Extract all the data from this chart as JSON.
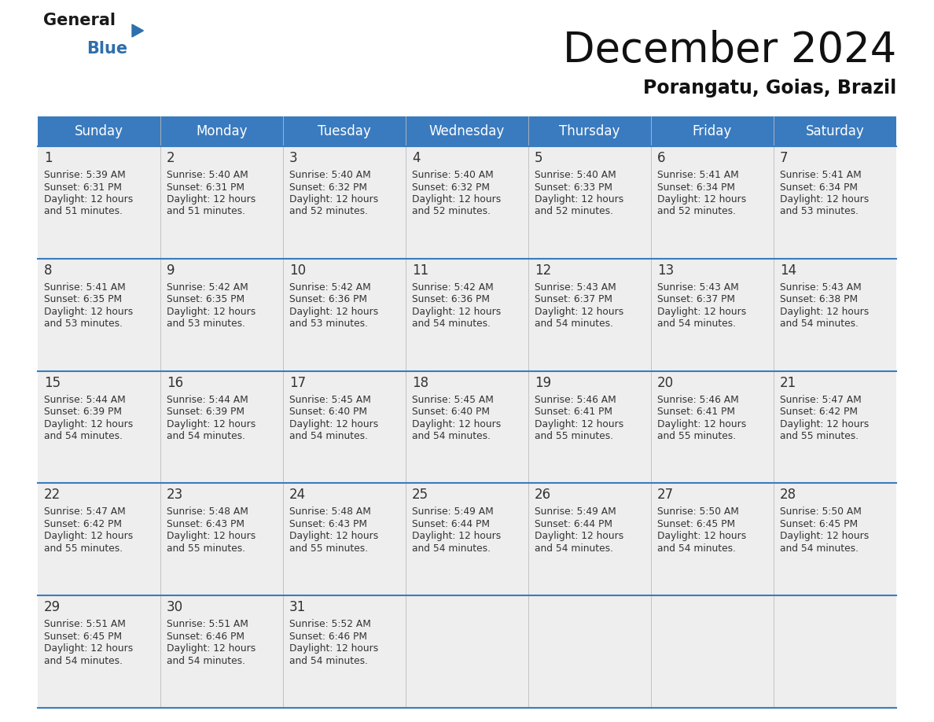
{
  "title": "December 2024",
  "subtitle": "Porangatu, Goias, Brazil",
  "header_bg": "#3a7bbf",
  "header_text": "#ffffff",
  "day_names": [
    "Sunday",
    "Monday",
    "Tuesday",
    "Wednesday",
    "Thursday",
    "Friday",
    "Saturday"
  ],
  "cell_bg": "#eeeeee",
  "border_color": "#3a7bbf",
  "date_color": "#333333",
  "info_color": "#333333",
  "logo_general_color": "#1a1a1a",
  "logo_blue_color": "#2e6fad",
  "days": [
    {
      "date": 1,
      "sunrise": "5:39 AM",
      "sunset": "6:31 PM",
      "daylight_h": "12 hours",
      "daylight_m": "51 minutes"
    },
    {
      "date": 2,
      "sunrise": "5:40 AM",
      "sunset": "6:31 PM",
      "daylight_h": "12 hours",
      "daylight_m": "51 minutes"
    },
    {
      "date": 3,
      "sunrise": "5:40 AM",
      "sunset": "6:32 PM",
      "daylight_h": "12 hours",
      "daylight_m": "52 minutes"
    },
    {
      "date": 4,
      "sunrise": "5:40 AM",
      "sunset": "6:32 PM",
      "daylight_h": "12 hours",
      "daylight_m": "52 minutes"
    },
    {
      "date": 5,
      "sunrise": "5:40 AM",
      "sunset": "6:33 PM",
      "daylight_h": "12 hours",
      "daylight_m": "52 minutes"
    },
    {
      "date": 6,
      "sunrise": "5:41 AM",
      "sunset": "6:34 PM",
      "daylight_h": "12 hours",
      "daylight_m": "52 minutes"
    },
    {
      "date": 7,
      "sunrise": "5:41 AM",
      "sunset": "6:34 PM",
      "daylight_h": "12 hours",
      "daylight_m": "53 minutes"
    },
    {
      "date": 8,
      "sunrise": "5:41 AM",
      "sunset": "6:35 PM",
      "daylight_h": "12 hours",
      "daylight_m": "53 minutes"
    },
    {
      "date": 9,
      "sunrise": "5:42 AM",
      "sunset": "6:35 PM",
      "daylight_h": "12 hours",
      "daylight_m": "53 minutes"
    },
    {
      "date": 10,
      "sunrise": "5:42 AM",
      "sunset": "6:36 PM",
      "daylight_h": "12 hours",
      "daylight_m": "53 minutes"
    },
    {
      "date": 11,
      "sunrise": "5:42 AM",
      "sunset": "6:36 PM",
      "daylight_h": "12 hours",
      "daylight_m": "54 minutes"
    },
    {
      "date": 12,
      "sunrise": "5:43 AM",
      "sunset": "6:37 PM",
      "daylight_h": "12 hours",
      "daylight_m": "54 minutes"
    },
    {
      "date": 13,
      "sunrise": "5:43 AM",
      "sunset": "6:37 PM",
      "daylight_h": "12 hours",
      "daylight_m": "54 minutes"
    },
    {
      "date": 14,
      "sunrise": "5:43 AM",
      "sunset": "6:38 PM",
      "daylight_h": "12 hours",
      "daylight_m": "54 minutes"
    },
    {
      "date": 15,
      "sunrise": "5:44 AM",
      "sunset": "6:39 PM",
      "daylight_h": "12 hours",
      "daylight_m": "54 minutes"
    },
    {
      "date": 16,
      "sunrise": "5:44 AM",
      "sunset": "6:39 PM",
      "daylight_h": "12 hours",
      "daylight_m": "54 minutes"
    },
    {
      "date": 17,
      "sunrise": "5:45 AM",
      "sunset": "6:40 PM",
      "daylight_h": "12 hours",
      "daylight_m": "54 minutes"
    },
    {
      "date": 18,
      "sunrise": "5:45 AM",
      "sunset": "6:40 PM",
      "daylight_h": "12 hours",
      "daylight_m": "54 minutes"
    },
    {
      "date": 19,
      "sunrise": "5:46 AM",
      "sunset": "6:41 PM",
      "daylight_h": "12 hours",
      "daylight_m": "55 minutes"
    },
    {
      "date": 20,
      "sunrise": "5:46 AM",
      "sunset": "6:41 PM",
      "daylight_h": "12 hours",
      "daylight_m": "55 minutes"
    },
    {
      "date": 21,
      "sunrise": "5:47 AM",
      "sunset": "6:42 PM",
      "daylight_h": "12 hours",
      "daylight_m": "55 minutes"
    },
    {
      "date": 22,
      "sunrise": "5:47 AM",
      "sunset": "6:42 PM",
      "daylight_h": "12 hours",
      "daylight_m": "55 minutes"
    },
    {
      "date": 23,
      "sunrise": "5:48 AM",
      "sunset": "6:43 PM",
      "daylight_h": "12 hours",
      "daylight_m": "55 minutes"
    },
    {
      "date": 24,
      "sunrise": "5:48 AM",
      "sunset": "6:43 PM",
      "daylight_h": "12 hours",
      "daylight_m": "55 minutes"
    },
    {
      "date": 25,
      "sunrise": "5:49 AM",
      "sunset": "6:44 PM",
      "daylight_h": "12 hours",
      "daylight_m": "54 minutes"
    },
    {
      "date": 26,
      "sunrise": "5:49 AM",
      "sunset": "6:44 PM",
      "daylight_h": "12 hours",
      "daylight_m": "54 minutes"
    },
    {
      "date": 27,
      "sunrise": "5:50 AM",
      "sunset": "6:45 PM",
      "daylight_h": "12 hours",
      "daylight_m": "54 minutes"
    },
    {
      "date": 28,
      "sunrise": "5:50 AM",
      "sunset": "6:45 PM",
      "daylight_h": "12 hours",
      "daylight_m": "54 minutes"
    },
    {
      "date": 29,
      "sunrise": "5:51 AM",
      "sunset": "6:45 PM",
      "daylight_h": "12 hours",
      "daylight_m": "54 minutes"
    },
    {
      "date": 30,
      "sunrise": "5:51 AM",
      "sunset": "6:46 PM",
      "daylight_h": "12 hours",
      "daylight_m": "54 minutes"
    },
    {
      "date": 31,
      "sunrise": "5:52 AM",
      "sunset": "6:46 PM",
      "daylight_h": "12 hours",
      "daylight_m": "54 minutes"
    }
  ]
}
